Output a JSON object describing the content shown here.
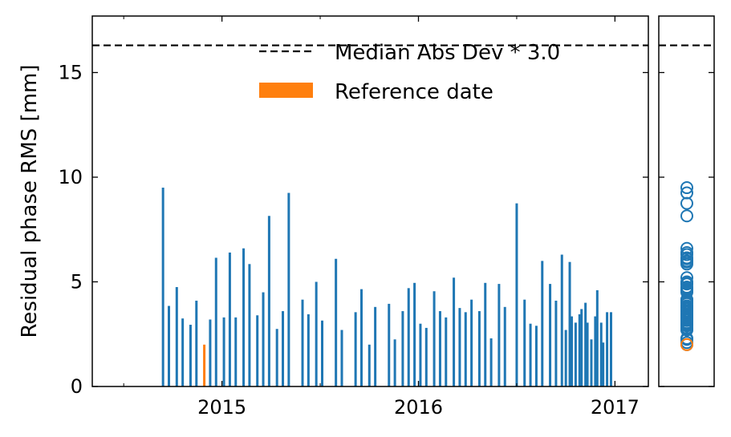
{
  "chart_data": {
    "type": "bar",
    "ylabel": "Residual phase RMS [mm]",
    "xlim": [
      2014.34,
      2017.17
    ],
    "xticks": [
      2015,
      2016,
      2017
    ],
    "xminor": [
      2014.5,
      2015.5,
      2016.5
    ],
    "ylim": [
      0,
      17.7
    ],
    "yticks": [
      0,
      5,
      10,
      15
    ],
    "legend": "upper right",
    "threshold": {
      "name": "Median Abs Dev * 3.0",
      "value": 16.3,
      "style": "dashed",
      "color": "#000000"
    },
    "series": [
      {
        "color": "#1f77b4",
        "x": [
          2014.7,
          2014.73,
          2014.77,
          2014.8,
          2014.84,
          2014.87,
          2014.94,
          2014.97,
          2015.01,
          2015.04,
          2015.07,
          2015.11,
          2015.14,
          2015.18,
          2015.21,
          2015.24,
          2015.28,
          2015.31,
          2015.34,
          2015.41,
          2015.44,
          2015.48,
          2015.51,
          2015.58,
          2015.61,
          2015.68,
          2015.71,
          2015.75,
          2015.78,
          2015.85,
          2015.88,
          2015.92,
          2015.95,
          2015.98,
          2016.01,
          2016.04,
          2016.08,
          2016.11,
          2016.14,
          2016.18,
          2016.21,
          2016.24,
          2016.27,
          2016.31,
          2016.34,
          2016.37,
          2016.41,
          2016.44,
          2016.5,
          2016.54,
          2016.57,
          2016.6,
          2016.63,
          2016.67,
          2016.7,
          2016.73,
          2016.75,
          2016.77,
          2016.78,
          2016.8,
          2016.82,
          2016.83,
          2016.85,
          2016.86,
          2016.88,
          2016.9,
          2016.91,
          2016.93,
          2016.94,
          2016.96,
          2016.98
        ],
        "values": [
          9.5,
          3.85,
          4.75,
          3.25,
          2.95,
          4.1,
          3.2,
          6.15,
          3.3,
          6.4,
          3.3,
          6.6,
          5.85,
          3.4,
          4.5,
          8.15,
          2.75,
          3.6,
          9.25,
          4.15,
          3.45,
          5.0,
          3.15,
          6.1,
          2.7,
          3.55,
          4.65,
          2.0,
          3.8,
          3.95,
          2.25,
          3.6,
          4.7,
          4.95,
          3.0,
          2.8,
          4.55,
          3.6,
          3.3,
          5.2,
          3.75,
          3.55,
          4.15,
          3.6,
          4.95,
          2.3,
          4.9,
          3.8,
          8.75,
          4.15,
          3.0,
          2.9,
          6.0,
          4.9,
          4.1,
          6.3,
          2.7,
          5.95,
          3.35,
          3.05,
          3.45,
          3.7,
          4.0,
          3.05,
          2.25,
          3.35,
          4.6,
          3.05,
          2.1,
          3.55,
          3.55
        ]
      },
      {
        "name": "Reference date",
        "color": "#ff7f0e",
        "x": [
          2014.91
        ],
        "values": [
          2.0
        ]
      }
    ]
  }
}
